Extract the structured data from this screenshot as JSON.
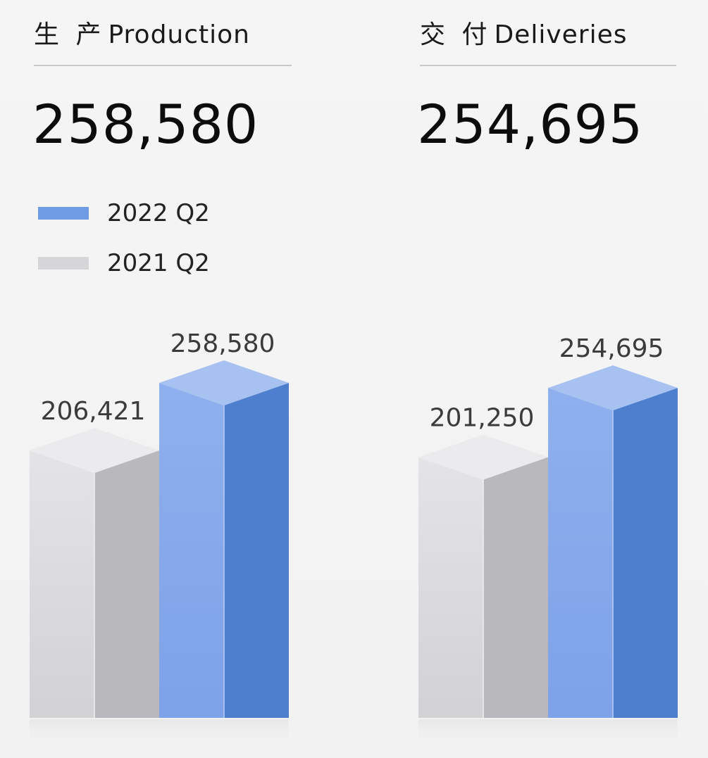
{
  "panels": [
    {
      "title_cn": "生 产",
      "title_en": "Production",
      "headline": "258,580"
    },
    {
      "title_cn": "交 付",
      "title_en": "Deliveries",
      "headline": "254,695"
    }
  ],
  "legend": [
    {
      "label": "2022 Q2",
      "color": "#6e9be3"
    },
    {
      "label": "2021 Q2",
      "color": "#d6d6d8"
    }
  ],
  "colors": {
    "blue_front": "#86aaeb",
    "blue_side": "#4e7fcf",
    "blue_top": "#a7c2f0",
    "gray_front": "#d9d9dc",
    "gray_side": "#b9b9bd",
    "gray_top": "#ebebed"
  },
  "chart_data": [
    {
      "type": "bar",
      "categories": [
        "2021 Q2",
        "2022 Q2"
      ],
      "values": [
        206421,
        258580
      ],
      "value_labels": [
        "206,421",
        "258,580"
      ]
    },
    {
      "type": "bar",
      "categories": [
        "2021 Q2",
        "2022 Q2"
      ],
      "values": [
        201250,
        254695
      ],
      "value_labels": [
        "201,250",
        "254,695"
      ]
    }
  ]
}
